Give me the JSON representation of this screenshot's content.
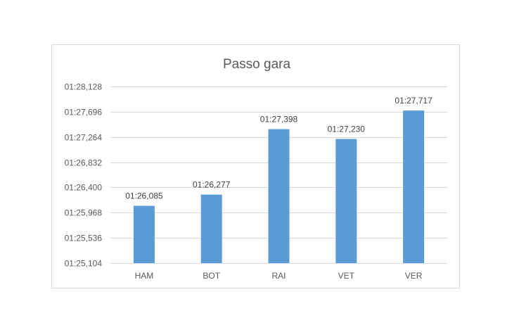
{
  "chart_data": {
    "type": "bar",
    "title": "Passo gara",
    "categories": [
      "HAM",
      "BOT",
      "RAI",
      "VET",
      "VER"
    ],
    "values": [
      86.085,
      86.277,
      87.398,
      87.23,
      87.717
    ],
    "data_labels": [
      "01:26,085",
      "01:26,277",
      "01:27,398",
      "01:27,230",
      "01:27,717"
    ],
    "yticks": [
      85.104,
      85.536,
      85.968,
      86.4,
      86.832,
      87.264,
      87.696,
      88.128
    ],
    "ytick_labels": [
      "01:25,104",
      "01:25,536",
      "01:25,968",
      "01:26,400",
      "01:26,832",
      "01:27,264",
      "01:27,696",
      "01:28,128"
    ],
    "ylim": [
      85.104,
      88.128
    ],
    "grid": true,
    "legend": "none",
    "bar_color": "#5b9bd5"
  }
}
